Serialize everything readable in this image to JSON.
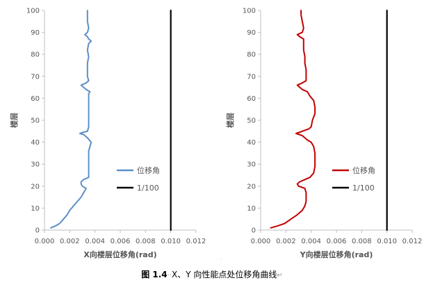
{
  "chart_data": [
    {
      "type": "line",
      "xlabel": "X向楼层位移角(rad)",
      "ylabel": "楼层",
      "xlim": [
        0,
        0.012
      ],
      "ylim": [
        0,
        100
      ],
      "x_ticks": [
        "0.000",
        "0.002",
        "0.004",
        "0.006",
        "0.008",
        "0.010",
        "0.012"
      ],
      "y_ticks": [
        "0",
        "10",
        "20",
        "30",
        "40",
        "50",
        "60",
        "70",
        "80",
        "90",
        "100"
      ],
      "legend_position": "right-middle",
      "series": [
        {
          "name": "位移角",
          "color": "#5b8fc7",
          "points": [
            [
              0.0005,
              1
            ],
            [
              0.0009,
              2
            ],
            [
              0.0012,
              3
            ],
            [
              0.0015,
              5
            ],
            [
              0.0018,
              7
            ],
            [
              0.002,
              9
            ],
            [
              0.0023,
              11
            ],
            [
              0.0026,
              13
            ],
            [
              0.0029,
              15
            ],
            [
              0.0031,
              17
            ],
            [
              0.0033,
              19
            ],
            [
              0.003,
              20
            ],
            [
              0.0029,
              21
            ],
            [
              0.0029,
              22
            ],
            [
              0.0031,
              23
            ],
            [
              0.0035,
              24
            ],
            [
              0.0035,
              26
            ],
            [
              0.0035,
              28
            ],
            [
              0.0035,
              30
            ],
            [
              0.0035,
              32
            ],
            [
              0.0035,
              34
            ],
            [
              0.0035,
              36
            ],
            [
              0.0036,
              38
            ],
            [
              0.0037,
              40
            ],
            [
              0.0034,
              42
            ],
            [
              0.0031,
              43.5
            ],
            [
              0.0028,
              44
            ],
            [
              0.0031,
              44.6
            ],
            [
              0.0034,
              45
            ],
            [
              0.0035,
              47
            ],
            [
              0.0035,
              50
            ],
            [
              0.0035,
              53
            ],
            [
              0.0035,
              56
            ],
            [
              0.0035,
              59
            ],
            [
              0.0035,
              62
            ],
            [
              0.0036,
              63
            ],
            [
              0.0033,
              64
            ],
            [
              0.0029,
              66
            ],
            [
              0.0033,
              67
            ],
            [
              0.0035,
              68
            ],
            [
              0.0034,
              70
            ],
            [
              0.0034,
              73
            ],
            [
              0.0034,
              76
            ],
            [
              0.0035,
              79
            ],
            [
              0.0034,
              82
            ],
            [
              0.0035,
              85
            ],
            [
              0.0037,
              86
            ],
            [
              0.0035,
              87
            ],
            [
              0.0034,
              88
            ],
            [
              0.0032,
              89
            ],
            [
              0.0034,
              90
            ],
            [
              0.0035,
              92
            ],
            [
              0.0034,
              95
            ],
            [
              0.0034,
              98
            ],
            [
              0.0034,
              100
            ]
          ]
        },
        {
          "name": "1/100",
          "color": "#000000",
          "points": [
            [
              0.01,
              0
            ],
            [
              0.01,
              100
            ]
          ]
        }
      ]
    },
    {
      "type": "line",
      "xlabel": "Y向楼层位移角(rad)",
      "ylabel": "楼层",
      "xlim": [
        0,
        0.012
      ],
      "ylim": [
        0,
        100
      ],
      "x_ticks": [
        "0.000",
        "0.002",
        "0.004",
        "0.006",
        "0.008",
        "0.010",
        "0.012"
      ],
      "y_ticks": [
        "0",
        "10",
        "20",
        "30",
        "40",
        "50",
        "60",
        "70",
        "80",
        "90",
        "100"
      ],
      "legend_position": "right-middle",
      "series": [
        {
          "name": "位移角",
          "color": "#c00000",
          "points": [
            [
              0.0008,
              1
            ],
            [
              0.0014,
              2
            ],
            [
              0.0019,
              3
            ],
            [
              0.0024,
              5
            ],
            [
              0.0029,
              7
            ],
            [
              0.0033,
              9
            ],
            [
              0.0035,
              11
            ],
            [
              0.0036,
              13
            ],
            [
              0.0036,
              15
            ],
            [
              0.0036,
              17
            ],
            [
              0.0035,
              19
            ],
            [
              0.003,
              20
            ],
            [
              0.0029,
              21
            ],
            [
              0.0031,
              22
            ],
            [
              0.0035,
              23
            ],
            [
              0.0039,
              24
            ],
            [
              0.0042,
              26
            ],
            [
              0.0043,
              29
            ],
            [
              0.0043,
              32
            ],
            [
              0.0043,
              35
            ],
            [
              0.0042,
              38
            ],
            [
              0.004,
              40
            ],
            [
              0.0037,
              41
            ],
            [
              0.0033,
              43
            ],
            [
              0.0028,
              44
            ],
            [
              0.0033,
              45
            ],
            [
              0.0038,
              46
            ],
            [
              0.004,
              47
            ],
            [
              0.0041,
              50
            ],
            [
              0.0043,
              53
            ],
            [
              0.0043,
              56
            ],
            [
              0.0042,
              59
            ],
            [
              0.0039,
              61
            ],
            [
              0.0037,
              63
            ],
            [
              0.0033,
              64
            ],
            [
              0.0029,
              66
            ],
            [
              0.0033,
              67
            ],
            [
              0.0036,
              68
            ],
            [
              0.0036,
              70
            ],
            [
              0.0036,
              73
            ],
            [
              0.0035,
              76
            ],
            [
              0.0035,
              79
            ],
            [
              0.0034,
              82
            ],
            [
              0.0034,
              85
            ],
            [
              0.0034,
              87
            ],
            [
              0.0031,
              88
            ],
            [
              0.0029,
              89
            ],
            [
              0.0033,
              90
            ],
            [
              0.0034,
              92
            ],
            [
              0.0033,
              95
            ],
            [
              0.0032,
              98
            ],
            [
              0.0032,
              100
            ]
          ]
        },
        {
          "name": "1/100",
          "color": "#000000",
          "points": [
            [
              0.01,
              0
            ],
            [
              0.01,
              100
            ]
          ]
        }
      ]
    }
  ],
  "caption": {
    "figure_number": "图 1.4",
    "separator": "··",
    "text": "X、Y 向性能点处位移角曲线",
    "end_mark": "↵"
  },
  "stray_mark": "."
}
